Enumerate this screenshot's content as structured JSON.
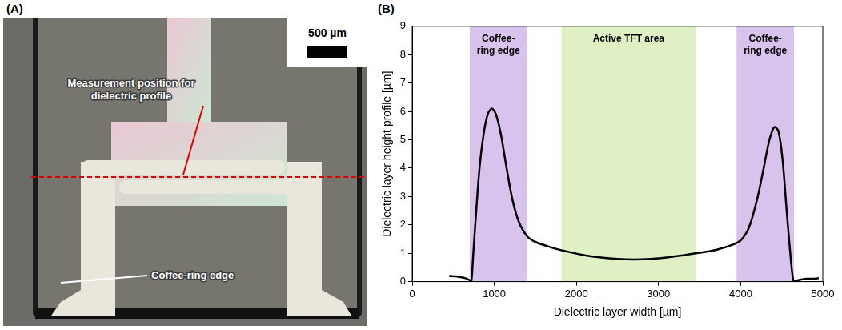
{
  "image_panel": {
    "panel_label": "(A)",
    "scale_bar": "500 µm",
    "annotations": [
      "Measurement position for dielectric profile",
      "Coffee-ring edge"
    ]
  },
  "chart_data": {
    "type": "line",
    "panel_label": "(B)",
    "x_label": "Dielectric layer width [µm]",
    "y_label": "Dielectric layer height profile [µm]",
    "x": [
      450,
      550,
      650,
      700,
      720,
      740,
      780,
      820,
      870,
      920,
      970,
      1020,
      1080,
      1150,
      1220,
      1300,
      1400,
      1500,
      1700,
      1900,
      2100,
      2300,
      2500,
      2700,
      2900,
      3100,
      3300,
      3500,
      3700,
      3900,
      4000,
      4100,
      4200,
      4280,
      4350,
      4410,
      4460,
      4510,
      4560,
      4610,
      4640,
      4660,
      4700,
      4800,
      4900,
      4950
    ],
    "values": [
      0.2,
      0.18,
      0.12,
      0.05,
      0.0,
      0.8,
      2.5,
      4.0,
      5.2,
      5.9,
      6.1,
      5.9,
      5.2,
      4.0,
      2.9,
      2.1,
      1.6,
      1.4,
      1.2,
      1.05,
      0.93,
      0.85,
      0.8,
      0.78,
      0.8,
      0.85,
      0.93,
      1.02,
      1.12,
      1.3,
      1.45,
      1.9,
      2.9,
      4.0,
      5.0,
      5.45,
      5.3,
      4.3,
      2.5,
      0.8,
      0.05,
      0.0,
      0.05,
      0.1,
      0.1,
      0.12
    ],
    "color": "#000000",
    "xlim": [
      0,
      5000
    ],
    "xticks": [
      0,
      1000,
      2000,
      3000,
      4000,
      5000
    ],
    "ylim": [
      0,
      9
    ],
    "yticks": [
      0,
      1,
      2,
      3,
      4,
      5,
      6,
      7,
      8,
      9
    ],
    "grid": false,
    "annotations": [
      {
        "text": "Coffee-ring edge",
        "x_range": [
          700,
          1400
        ],
        "color": "#d8c3ec"
      },
      {
        "text": "Active TFT area",
        "x_range": [
          1820,
          3450
        ],
        "color": "#dff1c4"
      },
      {
        "text": "Coffee-ring edge",
        "x_range": [
          3950,
          4650
        ],
        "color": "#d8c3ec"
      }
    ]
  }
}
